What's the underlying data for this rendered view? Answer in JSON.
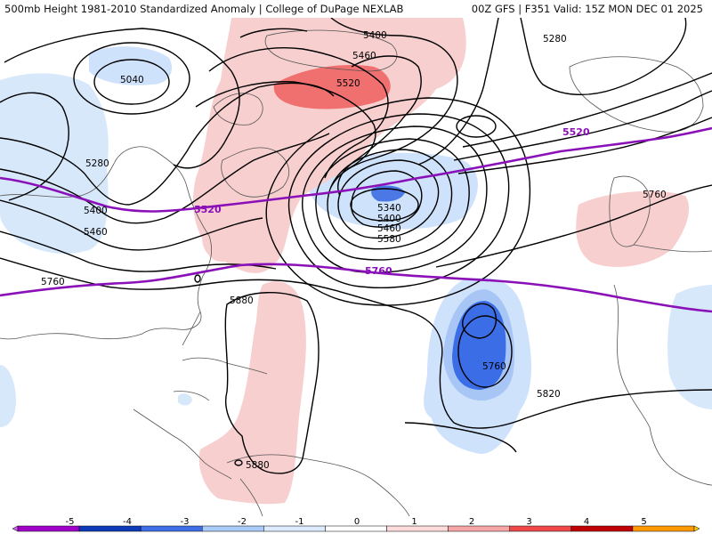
{
  "header": {
    "left": "500mb Height 1981-2010 Standardized Anomaly | College of DuPage NEXLAB",
    "right": "00Z GFS | F351 Valid: 15Z MON DEC 01 2025"
  },
  "contour_labels": {
    "c5040": "5040",
    "c5280_nw": "5280",
    "c5400_w": "5400",
    "c5460_w": "5460",
    "c5760_w": "5760",
    "c5400_gr": "5400",
    "c5460_gr": "5460",
    "c5520_gr": "5520",
    "c5280_ne": "5280",
    "c5340_low": "5340",
    "c5400_low": "5400",
    "c5460_low": "5460",
    "c5580_low": "5580",
    "c5760_e": "5760",
    "c5880_car": "5880",
    "c5880_sa": "5880",
    "c5760_cut": "5760",
    "c5820": "5820"
  },
  "highlight_labels": {
    "h5520_w": "5520",
    "h5520_e": "5520",
    "h5760": "5760"
  },
  "colorbar": {
    "ticks": [
      "-5",
      "-4",
      "-3",
      "-2",
      "-1",
      "0",
      "1",
      "2",
      "3",
      "4",
      "5"
    ],
    "colors": [
      "#a100c8",
      "#0c3ab8",
      "#3f6fe8",
      "#a9cdf8",
      "#dcebff",
      "#ffffff",
      "#ffdcdc",
      "#f7a6a6",
      "#f04848",
      "#c00000",
      "#ff9900"
    ],
    "end_low": "#d060f0",
    "end_high": "#ffcc00"
  }
}
